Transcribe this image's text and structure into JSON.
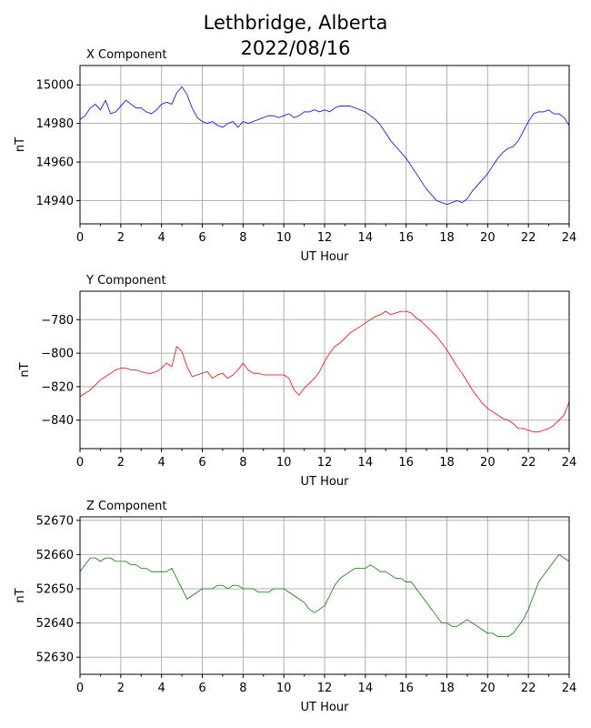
{
  "title_line1": "Lethbridge, Alberta",
  "title_line2": "2022/08/16",
  "chart_data": [
    {
      "type": "line",
      "title": "X Component",
      "xlabel": "UT Hour",
      "ylabel": "nT",
      "xlim": [
        0,
        24
      ],
      "ylim": [
        14928,
        15010
      ],
      "xticks": [
        0,
        2,
        4,
        6,
        8,
        10,
        12,
        14,
        16,
        18,
        20,
        22,
        24
      ],
      "yticks": [
        14940,
        14960,
        14980,
        15000
      ],
      "grid": true,
      "color": "#0000ff",
      "x": [
        0,
        0.25,
        0.5,
        0.75,
        1.0,
        1.25,
        1.5,
        1.75,
        2.0,
        2.25,
        2.5,
        2.75,
        3.0,
        3.25,
        3.5,
        3.75,
        4.0,
        4.25,
        4.5,
        4.75,
        5.0,
        5.25,
        5.5,
        5.75,
        6.0,
        6.25,
        6.5,
        6.75,
        7.0,
        7.25,
        7.5,
        7.75,
        8.0,
        8.25,
        8.5,
        8.75,
        9.0,
        9.25,
        9.5,
        9.75,
        10.0,
        10.25,
        10.5,
        10.75,
        11.0,
        11.25,
        11.5,
        11.75,
        12.0,
        12.25,
        12.5,
        12.75,
        13.0,
        13.25,
        13.5,
        13.75,
        14.0,
        14.25,
        14.5,
        14.75,
        15.0,
        15.25,
        15.5,
        15.75,
        16.0,
        16.25,
        16.5,
        16.75,
        17.0,
        17.25,
        17.5,
        17.75,
        18.0,
        18.25,
        18.5,
        18.75,
        19.0,
        19.25,
        19.5,
        19.75,
        20.0,
        20.25,
        20.5,
        20.75,
        21.0,
        21.25,
        21.5,
        21.75,
        22.0,
        22.25,
        22.5,
        22.75,
        23.0,
        23.25,
        23.5,
        23.75,
        24.0
      ],
      "values": [
        14982,
        14984,
        14988,
        14990,
        14987,
        14992,
        14985,
        14986,
        14989,
        14992,
        14990,
        14988,
        14988,
        14986,
        14985,
        14987,
        14990,
        14991,
        14990,
        14996,
        14999,
        14995,
        14988,
        14983,
        14981,
        14980,
        14981,
        14979,
        14978,
        14980,
        14981,
        14978,
        14981,
        14980,
        14981,
        14982,
        14983,
        14984,
        14984,
        14983,
        14984,
        14985,
        14983,
        14984,
        14986,
        14986,
        14987,
        14986,
        14987,
        14986,
        14988,
        14989,
        14989,
        14989,
        14988,
        14987,
        14986,
        14984,
        14982,
        14979,
        14975,
        14971,
        14968,
        14965,
        14962,
        14958,
        14954,
        14950,
        14946,
        14943,
        14940,
        14939,
        14938,
        14939,
        14940,
        14939,
        14941,
        14945,
        14948,
        14951,
        14954,
        14958,
        14962,
        14965,
        14967,
        14968,
        14971,
        14976,
        14981,
        14985,
        14986,
        14986,
        14987,
        14985,
        14985,
        14983,
        14979
      ]
    },
    {
      "type": "line",
      "title": "Y Component",
      "xlabel": "UT Hour",
      "ylabel": "nT",
      "xlim": [
        0,
        24
      ],
      "ylim": [
        -857,
        -763
      ],
      "xticks": [
        0,
        2,
        4,
        6,
        8,
        10,
        12,
        14,
        16,
        18,
        20,
        22,
        24
      ],
      "yticks": [
        -840,
        -820,
        -800,
        -780
      ],
      "grid": true,
      "color": "#ff0000",
      "x": [
        0,
        0.25,
        0.5,
        0.75,
        1.0,
        1.25,
        1.5,
        1.75,
        2.0,
        2.25,
        2.5,
        2.75,
        3.0,
        3.25,
        3.5,
        3.75,
        4.0,
        4.25,
        4.5,
        4.75,
        5.0,
        5.25,
        5.5,
        5.75,
        6.0,
        6.25,
        6.5,
        6.75,
        7.0,
        7.25,
        7.5,
        7.75,
        8.0,
        8.25,
        8.5,
        8.75,
        9.0,
        9.25,
        9.5,
        9.75,
        10.0,
        10.25,
        10.5,
        10.75,
        11.0,
        11.25,
        11.5,
        11.75,
        12.0,
        12.25,
        12.5,
        12.75,
        13.0,
        13.25,
        13.5,
        13.75,
        14.0,
        14.25,
        14.5,
        14.75,
        15.0,
        15.25,
        15.5,
        15.75,
        16.0,
        16.25,
        16.5,
        16.75,
        17.0,
        17.25,
        17.5,
        17.75,
        18.0,
        18.25,
        18.5,
        18.75,
        19.0,
        19.25,
        19.5,
        19.75,
        20.0,
        20.25,
        20.5,
        20.75,
        21.0,
        21.25,
        21.5,
        21.75,
        22.0,
        22.25,
        22.5,
        22.75,
        23.0,
        23.25,
        23.5,
        23.75,
        24.0
      ],
      "values": [
        -826,
        -824,
        -822,
        -819,
        -816,
        -814,
        -812,
        -810,
        -809,
        -809,
        -810,
        -810,
        -811,
        -812,
        -812,
        -811,
        -809,
        -806,
        -808,
        -796,
        -799,
        -808,
        -814,
        -813,
        -812,
        -811,
        -815,
        -813,
        -812,
        -815,
        -813,
        -810,
        -806,
        -810,
        -812,
        -812,
        -813,
        -813,
        -813,
        -813,
        -813,
        -815,
        -822,
        -825,
        -821,
        -818,
        -815,
        -811,
        -805,
        -800,
        -796,
        -794,
        -791,
        -788,
        -786,
        -784,
        -782,
        -780,
        -778,
        -777,
        -775,
        -777,
        -776,
        -775,
        -775,
        -776,
        -779,
        -781,
        -784,
        -787,
        -790,
        -794,
        -798,
        -803,
        -808,
        -812,
        -817,
        -822,
        -826,
        -830,
        -833,
        -835,
        -837,
        -839,
        -840,
        -842,
        -845,
        -845,
        -846,
        -847,
        -847,
        -846,
        -845,
        -843,
        -840,
        -837,
        -829
      ]
    },
    {
      "type": "line",
      "title": "Z Component",
      "xlabel": "UT Hour",
      "ylabel": "nT",
      "xlim": [
        0,
        24
      ],
      "ylim": [
        52625,
        52671
      ],
      "xticks": [
        0,
        2,
        4,
        6,
        8,
        10,
        12,
        14,
        16,
        18,
        20,
        22,
        24
      ],
      "yticks": [
        52630,
        52640,
        52650,
        52660,
        52670
      ],
      "grid": true,
      "color": "#008000",
      "x": [
        0,
        0.25,
        0.5,
        0.75,
        1.0,
        1.25,
        1.5,
        1.75,
        2.0,
        2.25,
        2.5,
        2.75,
        3.0,
        3.25,
        3.5,
        3.75,
        4.0,
        4.25,
        4.5,
        4.75,
        5.0,
        5.25,
        5.5,
        5.75,
        6.0,
        6.25,
        6.5,
        6.75,
        7.0,
        7.25,
        7.5,
        7.75,
        8.0,
        8.25,
        8.5,
        8.75,
        9.0,
        9.25,
        9.5,
        9.75,
        10.0,
        10.25,
        10.5,
        10.75,
        11.0,
        11.25,
        11.5,
        11.75,
        12.0,
        12.25,
        12.5,
        12.75,
        13.0,
        13.25,
        13.5,
        13.75,
        14.0,
        14.25,
        14.5,
        14.75,
        15.0,
        15.25,
        15.5,
        15.75,
        16.0,
        16.25,
        16.5,
        16.75,
        17.0,
        17.25,
        17.5,
        17.75,
        18.0,
        18.25,
        18.5,
        18.75,
        19.0,
        19.25,
        19.5,
        19.75,
        20.0,
        20.25,
        20.5,
        20.75,
        21.0,
        21.25,
        21.5,
        21.75,
        22.0,
        22.25,
        22.5,
        22.75,
        23.0,
        23.25,
        23.5,
        23.75,
        24.0
      ],
      "values": [
        52655,
        52657,
        52659,
        52659,
        52658,
        52659,
        52659,
        52658,
        52658,
        52658,
        52657,
        52657,
        52656,
        52656,
        52655,
        52655,
        52655,
        52655,
        52656,
        52653,
        52650,
        52647,
        52648,
        52649,
        52650,
        52650,
        52650,
        52651,
        52651,
        52650,
        52651,
        52651,
        52650,
        52650,
        52650,
        52649,
        52649,
        52649,
        52650,
        52650,
        52650,
        52649,
        52648,
        52647,
        52646,
        52644,
        52643,
        52644,
        52645,
        52648,
        52651,
        52653,
        52654,
        52655,
        52656,
        52656,
        52656,
        52657,
        52656,
        52655,
        52655,
        52654,
        52653,
        52653,
        52652,
        52652,
        52650,
        52648,
        52646,
        52644,
        52642,
        52640,
        52640,
        52639,
        52639,
        52640,
        52641,
        52640,
        52639,
        52638,
        52637,
        52637,
        52636,
        52636,
        52636,
        52637,
        52639,
        52641,
        52644,
        52648,
        52652,
        52654,
        52656,
        52658,
        52660,
        52659,
        52658
      ]
    }
  ]
}
